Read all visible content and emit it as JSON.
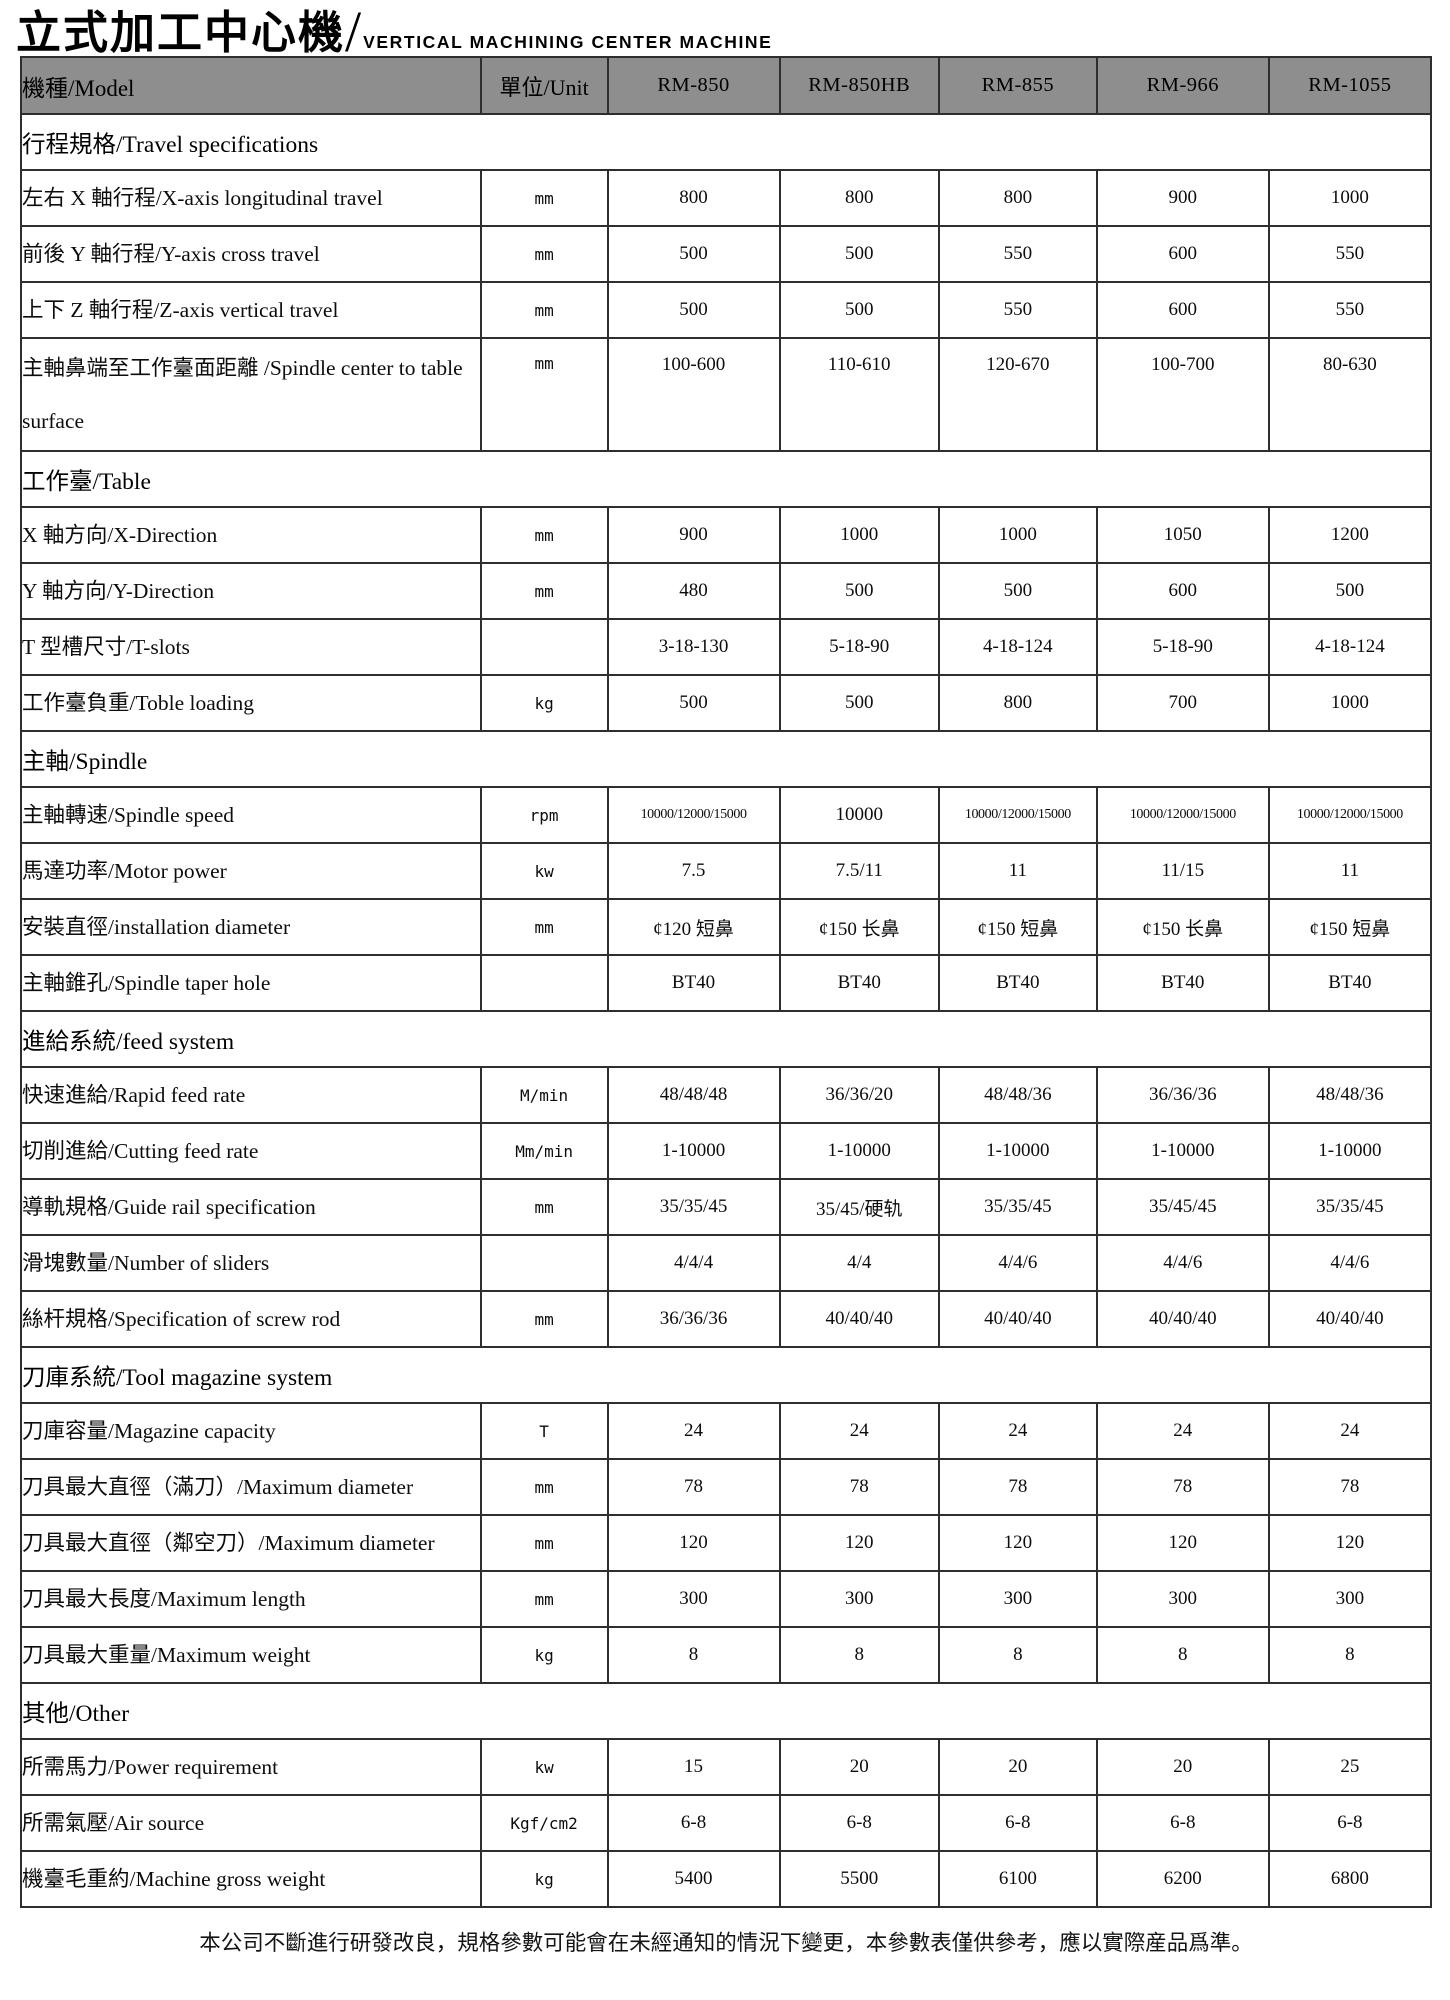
{
  "title": {
    "zh": "立式加工中心機",
    "separator": "/",
    "en": "VERTICAL MACHINING CENTER MACHINE"
  },
  "header": {
    "model_label": "機種/Model",
    "unit_label": "單位/Unit",
    "models": [
      "RM-850",
      "RM-850HB",
      "RM-855",
      "RM-966",
      "RM-1055"
    ]
  },
  "colors": {
    "header_bg": "#8e8e8e",
    "border": "#2e2e2e",
    "page_bg": "#ffffff"
  },
  "sections": [
    {
      "label": "行程規格/Travel specifications",
      "rows": [
        {
          "label": "左右 X 軸行程/X-axis longitudinal travel",
          "unit": "mm",
          "values": [
            "800",
            "800",
            "800",
            "900",
            "1000"
          ]
        },
        {
          "label": "前後 Y 軸行程/Y-axis cross travel",
          "unit": "mm",
          "values": [
            "500",
            "500",
            "550",
            "600",
            "550"
          ]
        },
        {
          "label": "上下 Z 軸行程/Z-axis vertical travel",
          "unit": "mm",
          "values": [
            "500",
            "500",
            "550",
            "600",
            "550"
          ]
        },
        {
          "label": "主軸鼻端至工作臺面距離 /Spindle center to table surface",
          "unit": "mm",
          "values": [
            "100-600",
            "110-610",
            "120-670",
            "100-700",
            "80-630"
          ],
          "tall": true
        }
      ]
    },
    {
      "label": "工作臺/Table",
      "rows": [
        {
          "label": "X 軸方向/X-Direction",
          "unit": "mm",
          "values": [
            "900",
            "1000",
            "1000",
            "1050",
            "1200"
          ]
        },
        {
          "label": "Y 軸方向/Y-Direction",
          "unit": "mm",
          "values": [
            "480",
            "500",
            "500",
            "600",
            "500"
          ]
        },
        {
          "label": "T 型槽尺寸/T-slots",
          "unit": "",
          "values": [
            "3-18-130",
            "5-18-90",
            "4-18-124",
            "5-18-90",
            "4-18-124"
          ]
        },
        {
          "label": "工作臺負重/Toble loading",
          "unit": "kg",
          "values": [
            "500",
            "500",
            "800",
            "700",
            "1000"
          ]
        }
      ]
    },
    {
      "label": "主軸/Spindle",
      "rows": [
        {
          "label": "主軸轉速/Spindle speed",
          "unit": "rpm",
          "values": [
            "10000/12000/15000",
            "10000",
            "10000/12000/15000",
            "10000/12000/15000",
            "10000/12000/15000"
          ]
        },
        {
          "label": "馬達功率/Motor power",
          "unit": "kw",
          "values": [
            "7.5",
            "7.5/11",
            "11",
            "11/15",
            "11"
          ]
        },
        {
          "label": "安裝直徑/installation diameter",
          "unit": "mm",
          "values": [
            "¢120 短鼻",
            "¢150 长鼻",
            "¢150 短鼻",
            "¢150 长鼻",
            "¢150 短鼻"
          ]
        },
        {
          "label": "主軸錐孔/Spindle taper hole",
          "unit": "",
          "values": [
            "BT40",
            "BT40",
            "BT40",
            "BT40",
            "BT40"
          ]
        }
      ]
    },
    {
      "label": "進給系統/feed system",
      "rows": [
        {
          "label": "快速進給/Rapid feed rate",
          "unit": "M/min",
          "values": [
            "48/48/48",
            "36/36/20",
            "48/48/36",
            "36/36/36",
            "48/48/36"
          ]
        },
        {
          "label": "切削進給/Cutting feed rate",
          "unit": "Mm/min",
          "values": [
            "1-10000",
            "1-10000",
            "1-10000",
            "1-10000",
            "1-10000"
          ]
        },
        {
          "label": "導軌規格/Guide rail specification",
          "unit": "mm",
          "values": [
            "35/35/45",
            "35/45/硬轨",
            "35/35/45",
            "35/45/45",
            "35/35/45"
          ]
        },
        {
          "label": "滑塊數量/Number of sliders",
          "unit": "",
          "values": [
            "4/4/4",
            "4/4",
            "4/4/6",
            "4/4/6",
            "4/4/6"
          ]
        },
        {
          "label": "絲杆規格/Specification of screw rod",
          "unit": "mm",
          "values": [
            "36/36/36",
            "40/40/40",
            "40/40/40",
            "40/40/40",
            "40/40/40"
          ]
        }
      ]
    },
    {
      "label": "刀庫系統/Tool magazine system",
      "rows": [
        {
          "label": "刀庫容量/Magazine capacity",
          "unit": "T",
          "values": [
            "24",
            "24",
            "24",
            "24",
            "24"
          ]
        },
        {
          "label": "刀具最大直徑（滿刀）/Maximum diameter",
          "unit": "mm",
          "values": [
            "78",
            "78",
            "78",
            "78",
            "78"
          ]
        },
        {
          "label": "刀具最大直徑（鄰空刀）/Maximum diameter",
          "unit": "mm",
          "values": [
            "120",
            "120",
            "120",
            "120",
            "120"
          ]
        },
        {
          "label": "刀具最大長度/Maximum length",
          "unit": "mm",
          "values": [
            "300",
            "300",
            "300",
            "300",
            "300"
          ]
        },
        {
          "label": "刀具最大重量/Maximum weight",
          "unit": "kg",
          "values": [
            "8",
            "8",
            "8",
            "8",
            "8"
          ]
        }
      ]
    },
    {
      "label": "其他/Other",
      "rows": [
        {
          "label": "所需馬力/Power requirement",
          "unit": "kw",
          "values": [
            "15",
            "20",
            "20",
            "20",
            "25"
          ]
        },
        {
          "label": "所需氣壓/Air source",
          "unit": "Kgf/cm2",
          "values": [
            "6-8",
            "6-8",
            "6-8",
            "6-8",
            "6-8"
          ]
        },
        {
          "label": "機臺毛重約/Machine gross weight",
          "unit": "kg",
          "values": [
            "5400",
            "5500",
            "6100",
            "6200",
            "6800"
          ]
        }
      ]
    }
  ],
  "footer": "本公司不斷進行研發改良，規格參數可能會在未經通知的情況下變更，本參數表僅供參考，應以實際産品爲準。"
}
